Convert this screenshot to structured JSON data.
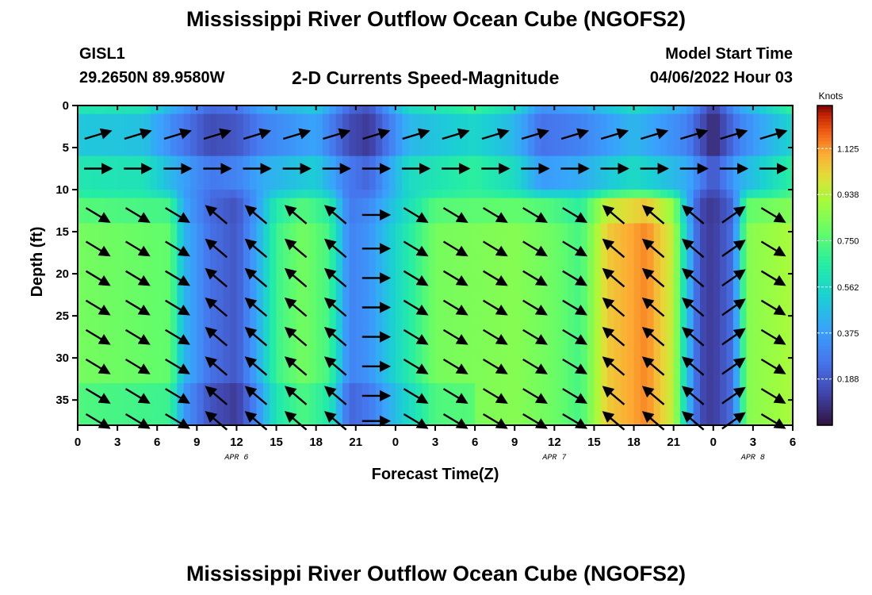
{
  "header": {
    "title": "Mississippi River Outflow Ocean Cube (NGOFS2)",
    "station_id": "GISL1",
    "station_coords": "29.2650N  89.9580W",
    "subtitle": "2-D Currents Speed-Magnitude",
    "model_start_label": "Model Start Time",
    "model_start_value": "04/06/2022 Hour 03"
  },
  "footer": {
    "title": "Mississippi River Outflow Ocean Cube (NGOFS2)"
  },
  "chart_data": {
    "type": "heatmap",
    "title": "2-D Currents Speed-Magnitude",
    "xlabel": "Forecast Time(Z)",
    "ylabel": "Depth (ft)",
    "x_unit": "hours from 04/06/2022 00Z",
    "xlim": [
      0,
      54
    ],
    "ylim": [
      38,
      0
    ],
    "x_ticks": [
      0,
      3,
      6,
      9,
      12,
      15,
      18,
      21,
      24,
      27,
      30,
      33,
      36,
      39,
      42,
      45,
      48,
      51,
      54
    ],
    "x_tick_labels": [
      "0",
      "3",
      "6",
      "9",
      "12",
      "15",
      "18",
      "21",
      "0",
      "3",
      "6",
      "9",
      "12",
      "15",
      "18",
      "21",
      "0",
      "3",
      "6"
    ],
    "date_labels": [
      {
        "x": 12,
        "text": "APR 6"
      },
      {
        "x": 36,
        "text": "APR 7"
      },
      {
        "x": 51,
        "text": "APR 8"
      }
    ],
    "y_ticks": [
      0,
      5,
      10,
      15,
      20,
      25,
      30,
      35
    ],
    "y_tick_labels": [
      "0",
      "5",
      "10",
      "15",
      "20",
      "25",
      "30",
      "35"
    ],
    "colorbar": {
      "label": "Knots",
      "range": [
        0,
        1.3
      ],
      "ticks": [
        0.188,
        0.375,
        0.562,
        0.75,
        0.938,
        1.125
      ],
      "tick_labels": [
        "0.188",
        "0.375",
        "0.562",
        "0.750",
        "0.938",
        "1.125"
      ],
      "colormap": "turbo"
    },
    "speed_profile_upper": [
      {
        "x": 0,
        "v": 0.5
      },
      {
        "x": 5,
        "v": 0.48
      },
      {
        "x": 7.5,
        "v": 0.3
      },
      {
        "x": 10,
        "v": 0.15
      },
      {
        "x": 12,
        "v": 0.18
      },
      {
        "x": 14,
        "v": 0.3
      },
      {
        "x": 18,
        "v": 0.4
      },
      {
        "x": 20.5,
        "v": 0.15
      },
      {
        "x": 22,
        "v": 0.1
      },
      {
        "x": 25,
        "v": 0.45
      },
      {
        "x": 30,
        "v": 0.55
      },
      {
        "x": 33,
        "v": 0.45
      },
      {
        "x": 35,
        "v": 0.25
      },
      {
        "x": 38,
        "v": 0.3
      },
      {
        "x": 42,
        "v": 0.45
      },
      {
        "x": 46,
        "v": 0.3
      },
      {
        "x": 48,
        "v": 0.05
      },
      {
        "x": 50,
        "v": 0.3
      },
      {
        "x": 54,
        "v": 0.55
      }
    ],
    "speed_profile_lower": [
      {
        "x": 0,
        "v": 0.82
      },
      {
        "x": 7,
        "v": 0.78
      },
      {
        "x": 8,
        "v": 0.45
      },
      {
        "x": 10,
        "v": 0.25
      },
      {
        "x": 12,
        "v": 0.18
      },
      {
        "x": 13.5,
        "v": 0.4
      },
      {
        "x": 15,
        "v": 0.7
      },
      {
        "x": 17,
        "v": 0.82
      },
      {
        "x": 19,
        "v": 0.72
      },
      {
        "x": 20.5,
        "v": 0.3
      },
      {
        "x": 22,
        "v": 0.35
      },
      {
        "x": 24,
        "v": 0.55
      },
      {
        "x": 27,
        "v": 0.82
      },
      {
        "x": 33,
        "v": 0.85
      },
      {
        "x": 36,
        "v": 0.8
      },
      {
        "x": 38,
        "v": 0.72
      },
      {
        "x": 40,
        "v": 1.05
      },
      {
        "x": 43,
        "v": 1.15
      },
      {
        "x": 45,
        "v": 0.95
      },
      {
        "x": 46,
        "v": 0.5
      },
      {
        "x": 47,
        "v": 0.15
      },
      {
        "x": 48,
        "v": 0.1
      },
      {
        "x": 49.5,
        "v": 0.25
      },
      {
        "x": 50.5,
        "v": 0.85
      },
      {
        "x": 54,
        "v": 0.92
      }
    ],
    "arrow_x": [
      1.5,
      4.5,
      7.5,
      10.5,
      13.5,
      16.5,
      19.5,
      22.5,
      25.5,
      28.5,
      31.5,
      34.5,
      37.5,
      40.5,
      43.5,
      46.5,
      49.5,
      52.5
    ],
    "arrow_depths": [
      3.5,
      7.5,
      13,
      17,
      20.5,
      24,
      27.5,
      31,
      34.5,
      37.5
    ],
    "arrow_dir_upper": "east-north-east",
    "arrow_dir_lower": [
      {
        "x_from": 0,
        "x_to": 9,
        "dir": "south-east"
      },
      {
        "x_from": 9,
        "x_to": 21,
        "dir": "north-west"
      },
      {
        "x_from": 21,
        "x_to": 24,
        "dir": "east"
      },
      {
        "x_from": 24,
        "x_to": 39,
        "dir": "south-east"
      },
      {
        "x_from": 39,
        "x_to": 48,
        "dir": "north-west"
      },
      {
        "x_from": 48,
        "x_to": 51,
        "dir": "north-east"
      },
      {
        "x_from": 51,
        "x_to": 54,
        "dir": "south-east"
      }
    ]
  }
}
